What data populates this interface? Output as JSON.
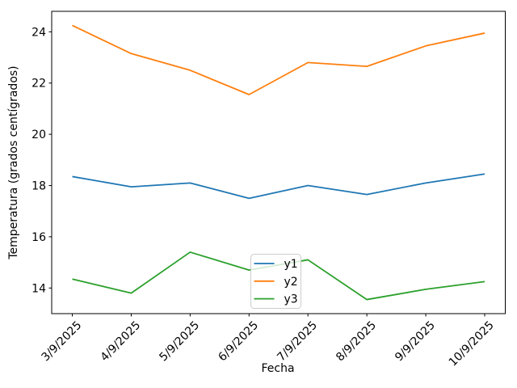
{
  "figure": {
    "background": "#ffffff",
    "axis_color": "#000000",
    "tick_label_color": "#000000"
  },
  "chart_data": {
    "type": "line",
    "title": "",
    "xlabel": "Fecha",
    "ylabel": "Temperatura (grados centígrados)",
    "categories": [
      "3/9/2025",
      "4/9/2025",
      "5/9/2025",
      "6/9/2025",
      "7/9/2025",
      "8/9/2025",
      "9/9/2025",
      "10/9/2025"
    ],
    "series": [
      {
        "name": "y1",
        "color": "#1f77b4",
        "values": [
          18.35,
          17.95,
          18.1,
          17.5,
          18.0,
          17.65,
          18.1,
          18.45
        ]
      },
      {
        "name": "y2",
        "color": "#ff7f0e",
        "values": [
          24.25,
          23.15,
          22.5,
          21.55,
          22.8,
          22.65,
          23.45,
          23.95
        ]
      },
      {
        "name": "y3",
        "color": "#2ca02c",
        "values": [
          14.35,
          13.8,
          15.4,
          14.7,
          15.1,
          13.55,
          13.95,
          14.25
        ]
      }
    ],
    "yticks": [
      14,
      16,
      18,
      20,
      22,
      24
    ],
    "ylim": [
      13.0,
      24.8
    ],
    "xtick_rotation_deg": 45,
    "grid": false,
    "legend": {
      "entries": [
        "y1",
        "y2",
        "y3"
      ],
      "position": "inside-lower-center",
      "frame_edge_color": "#cccccc",
      "frame_fill": "rgba(255,255,255,0.8)"
    }
  }
}
